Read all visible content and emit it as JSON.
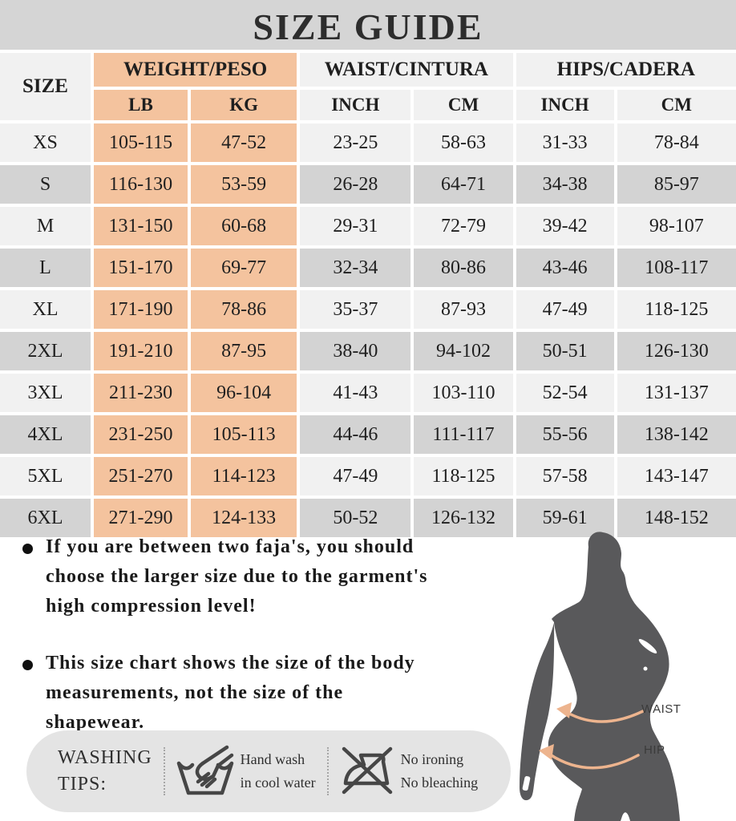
{
  "title": "SIZE GUIDE",
  "colors": {
    "title_band": "#D5D5D5",
    "peach_accent": "#F4C39E",
    "row_light": "#F1F1F1",
    "row_dark": "#D3D3D3",
    "washing_pill": "#E4E4E4",
    "silhouette": "#59595B",
    "measure_arrow": "#EDB48E"
  },
  "table": {
    "size_header": "SIZE",
    "groups": [
      {
        "label": "WEIGHT/PESO",
        "sub": [
          "LB",
          "KG"
        ]
      },
      {
        "label": "WAIST/CINTURA",
        "sub": [
          "INCH",
          "CM"
        ]
      },
      {
        "label": "HIPS/CADERA",
        "sub": [
          "INCH",
          "CM"
        ]
      }
    ],
    "rows": [
      {
        "size": "XS",
        "lb": "105-115",
        "kg": "47-52",
        "waist_inch": "23-25",
        "waist_cm": "58-63",
        "hips_inch": "31-33",
        "hips_cm": "78-84"
      },
      {
        "size": "S",
        "lb": "116-130",
        "kg": "53-59",
        "waist_inch": "26-28",
        "waist_cm": "64-71",
        "hips_inch": "34-38",
        "hips_cm": "85-97"
      },
      {
        "size": "M",
        "lb": "131-150",
        "kg": "60-68",
        "waist_inch": "29-31",
        "waist_cm": "72-79",
        "hips_inch": "39-42",
        "hips_cm": "98-107"
      },
      {
        "size": "L",
        "lb": "151-170",
        "kg": "69-77",
        "waist_inch": "32-34",
        "waist_cm": "80-86",
        "hips_inch": "43-46",
        "hips_cm": "108-117"
      },
      {
        "size": "XL",
        "lb": "171-190",
        "kg": "78-86",
        "waist_inch": "35-37",
        "waist_cm": "87-93",
        "hips_inch": "47-49",
        "hips_cm": "118-125"
      },
      {
        "size": "2XL",
        "lb": "191-210",
        "kg": "87-95",
        "waist_inch": "38-40",
        "waist_cm": "94-102",
        "hips_inch": "50-51",
        "hips_cm": "126-130"
      },
      {
        "size": "3XL",
        "lb": "211-230",
        "kg": "96-104",
        "waist_inch": "41-43",
        "waist_cm": "103-110",
        "hips_inch": "52-54",
        "hips_cm": "131-137"
      },
      {
        "size": "4XL",
        "lb": "231-250",
        "kg": "105-113",
        "waist_inch": "44-46",
        "waist_cm": "111-117",
        "hips_inch": "55-56",
        "hips_cm": "138-142"
      },
      {
        "size": "5XL",
        "lb": "251-270",
        "kg": "114-123",
        "waist_inch": "47-49",
        "waist_cm": "118-125",
        "hips_inch": "57-58",
        "hips_cm": "143-147"
      },
      {
        "size": "6XL",
        "lb": "271-290",
        "kg": "124-133",
        "waist_inch": "50-52",
        "waist_cm": "126-132",
        "hips_inch": "59-61",
        "hips_cm": "148-152"
      }
    ]
  },
  "notes": [
    {
      "lines": [
        "If you are between two faja's, you should",
        "choose the larger size due to the garment's",
        "high compression level!"
      ]
    },
    {
      "lines": [
        "This size chart shows the size of the body",
        "measurements, not the size of the",
        "shapewear."
      ]
    }
  ],
  "washing": {
    "label_lines": [
      "WASHING",
      "TIPS:"
    ],
    "items": [
      {
        "icon": "hand-wash-icon",
        "lines": [
          "Hand wash",
          "in cool water"
        ]
      },
      {
        "icon": "no-iron-icon",
        "lines": [
          "No ironing",
          "No bleaching"
        ]
      }
    ]
  },
  "figure": {
    "waist_label": "WAIST",
    "hip_label": "HIP"
  }
}
